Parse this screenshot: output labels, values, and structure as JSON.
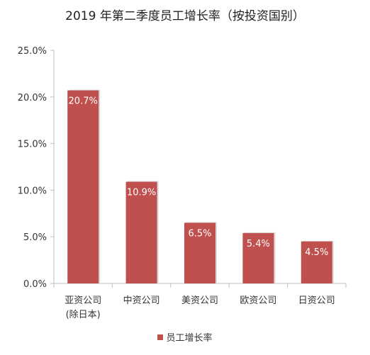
{
  "chart_data": {
    "type": "bar",
    "title": "2019 年第二季度员工增长率（按投资国别）",
    "categories": [
      "亚资公司\n(除日本)",
      "中资公司",
      "美资公司",
      "欧资公司",
      "日资公司"
    ],
    "series": [
      {
        "name": "员工增长率",
        "values": [
          20.7,
          10.9,
          6.5,
          5.4,
          4.5
        ],
        "data_labels": [
          "20.7%",
          "10.9%",
          "6.5%",
          "5.4%",
          "4.5%"
        ]
      }
    ],
    "y_ticks": [
      "0.0%",
      "5.0%",
      "10.0%",
      "15.0%",
      "20.0%",
      "25.0%"
    ],
    "ylim": [
      0,
      25
    ],
    "grid": false,
    "legend_position": "bottom",
    "colors": {
      "bar": "#c0504d",
      "bar_shadow": "#d9d9d9",
      "axis": "#bfbfbf",
      "text": "#333333",
      "label_text": "#ffffff"
    }
  }
}
